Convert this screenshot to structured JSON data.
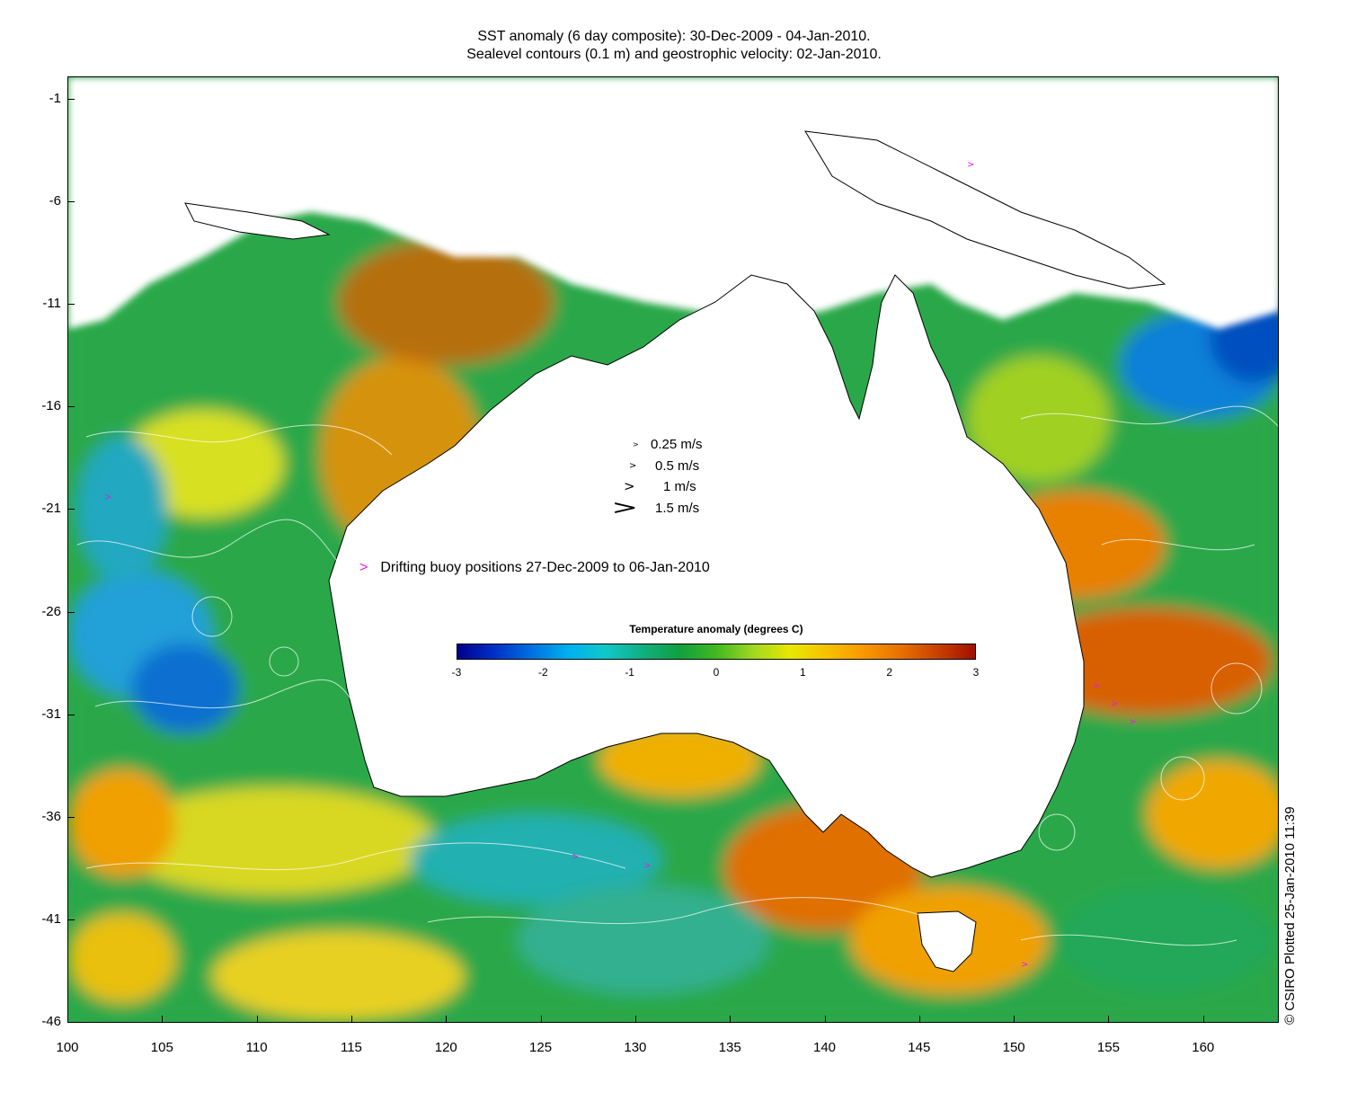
{
  "titles": {
    "line1": "SST anomaly (6 day composite): 30-Dec-2009 - 04-Jan-2010.",
    "line2": "Sealevel contours (0.1 m) and geostrophic velocity: 02-Jan-2010."
  },
  "axes": {
    "x_ticks": [
      "100",
      "105",
      "110",
      "115",
      "120",
      "125",
      "130",
      "135",
      "140",
      "145",
      "150",
      "155",
      "160"
    ],
    "y_ticks": [
      "-1",
      "-6",
      "-11",
      "-16",
      "-21",
      "-26",
      "-31",
      "-36",
      "-41",
      "-46"
    ],
    "x_range": [
      100,
      164
    ],
    "y_range": [
      -46,
      0.5
    ]
  },
  "velocity_legend": [
    {
      "label": "0.25 m/s"
    },
    {
      "label": "0.5 m/s"
    },
    {
      "label": "1 m/s"
    },
    {
      "label": "1.5 m/s"
    }
  ],
  "buoy_legend": {
    "marker": ">",
    "label": "Drifting buoy positions 27-Dec-2009 to 06-Jan-2010"
  },
  "colorbar": {
    "title": "Temperature anomaly (degrees C)",
    "ticks": [
      "-3",
      "-2",
      "-1",
      "0",
      "1",
      "2",
      "3"
    ],
    "range": [
      -3,
      3
    ]
  },
  "credit": "© CSIRO Plotted 25-Jan-2010 11:39",
  "colors": {
    "land": "#ffffff",
    "sea_base": "#2aa84a",
    "warm": "#f8a800",
    "hot": "#c85010",
    "cool": "#10b8c8",
    "cold": "#0060d0",
    "buoy": "#e020e0",
    "contour": "#ffffff"
  }
}
